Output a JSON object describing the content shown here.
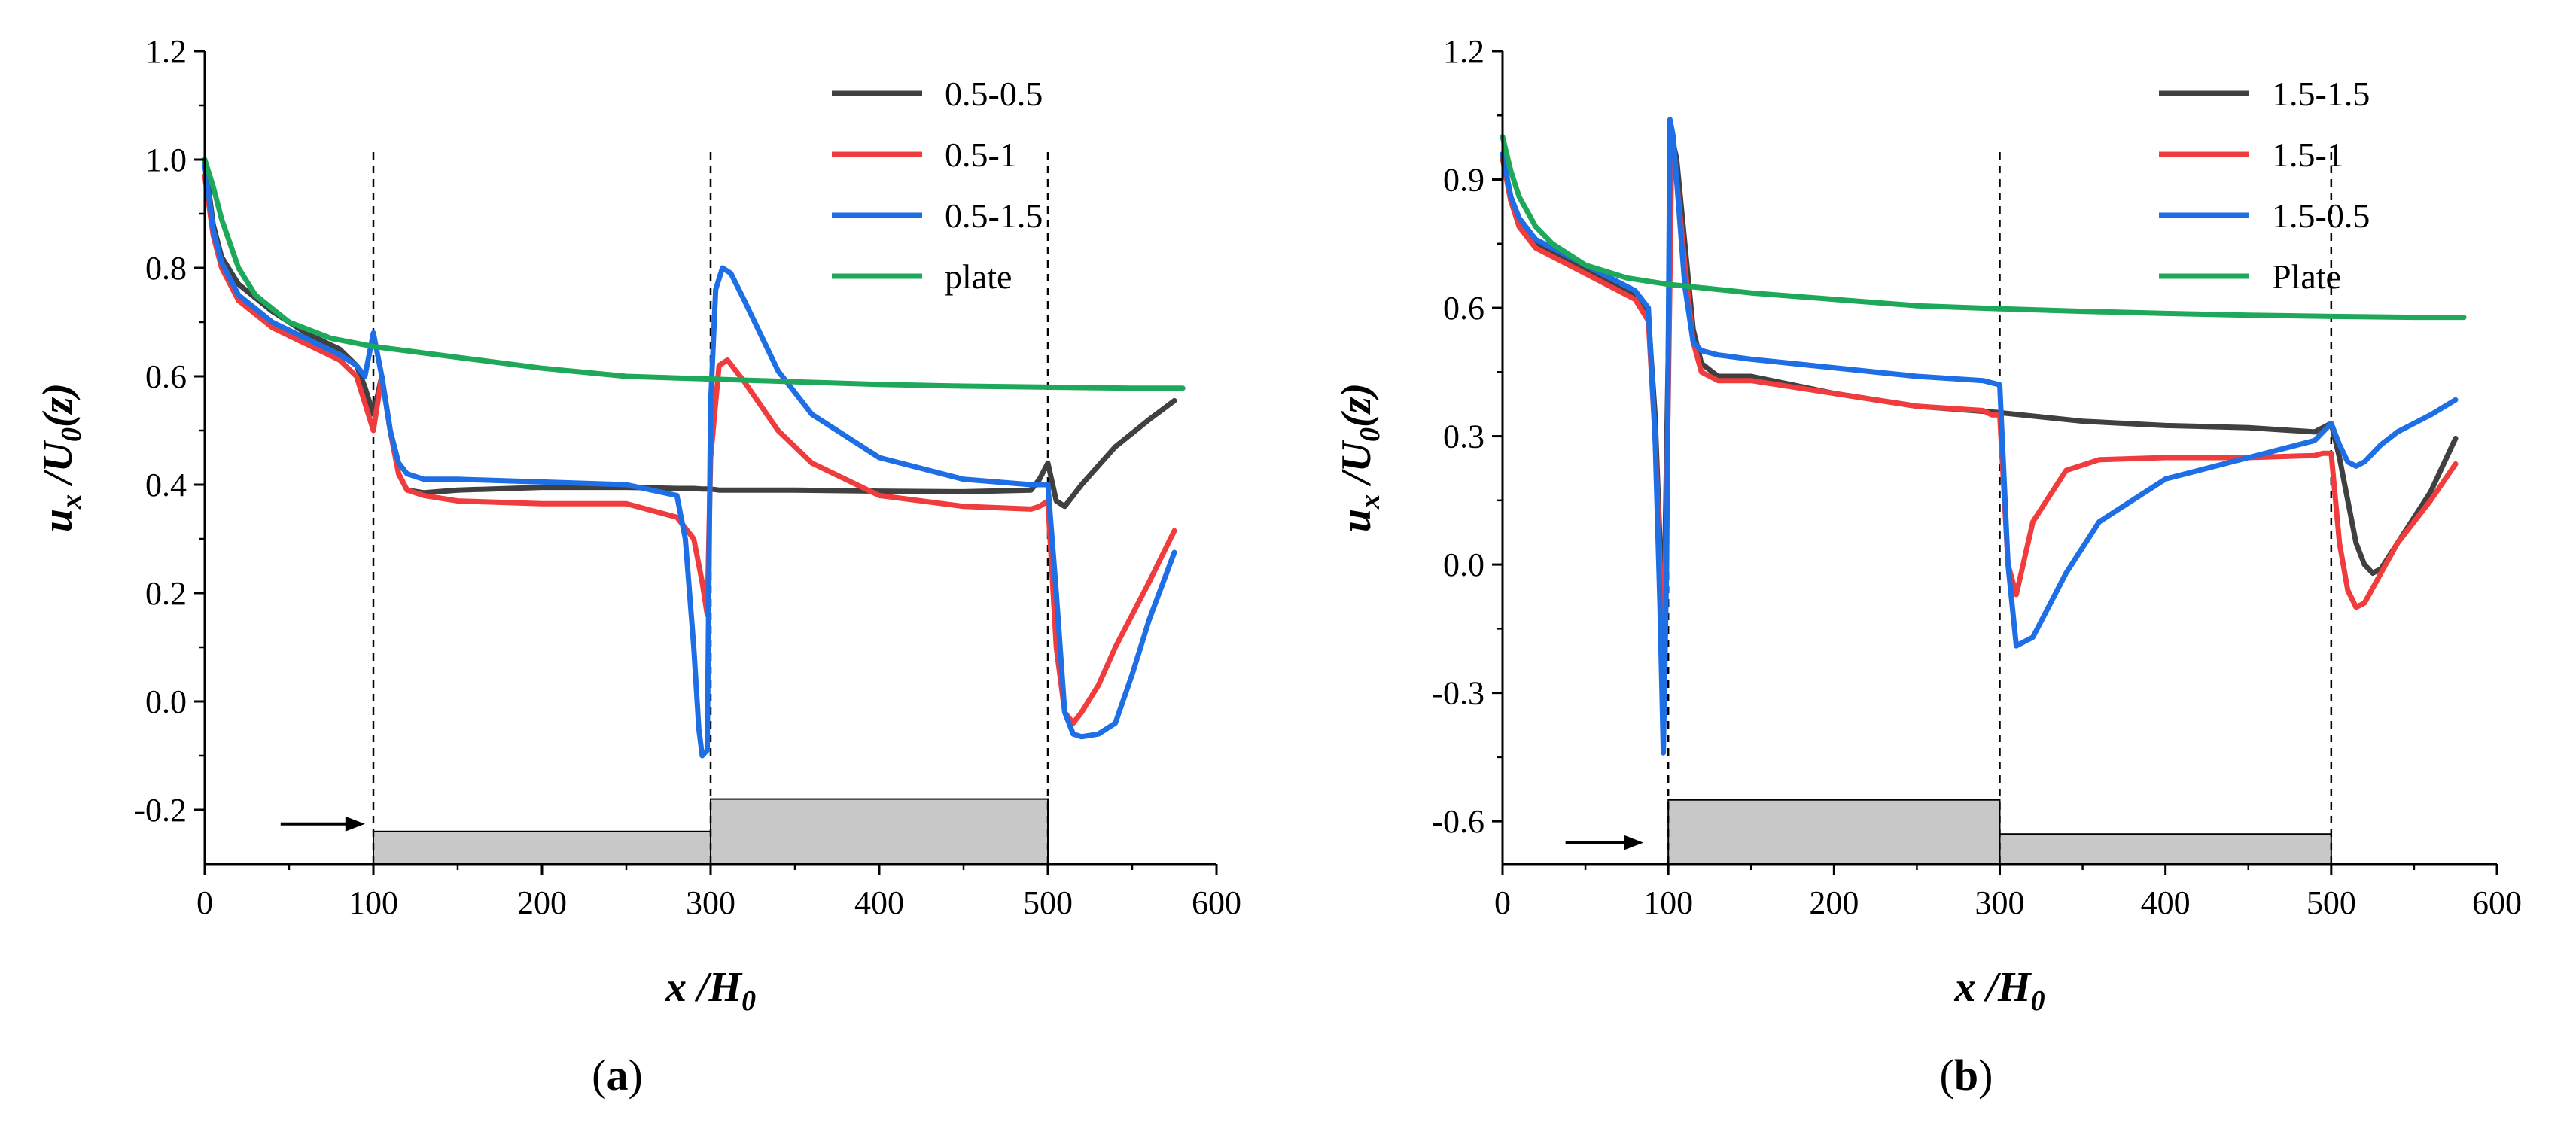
{
  "colors": {
    "dark_gray": "#404040",
    "red": "#f03c3c",
    "blue": "#1e6ee6",
    "green": "#1ea85a",
    "block_fill": "#c8c8c8"
  },
  "chart_data": [
    {
      "type": "line",
      "panel_label": "(a)",
      "xlabel": "x /H0",
      "ylabel": "ux /U0(z)",
      "xlim": [
        0,
        600
      ],
      "ylim": [
        -0.3,
        1.2
      ],
      "xticks": [
        "0",
        "100",
        "200",
        "300",
        "400",
        "500",
        "600"
      ],
      "yticks": [
        "-0.2",
        "0.0",
        "0.2",
        "0.4",
        "0.6",
        "0.8",
        "1.0",
        "1.2"
      ],
      "legend_position": "top-right",
      "grid": false,
      "dashed_lines_x": [
        100,
        300,
        500
      ],
      "blocks": [
        {
          "x0": 100,
          "x1": 300,
          "top": -0.24
        },
        {
          "x0": 300,
          "x1": 500,
          "top": -0.18
        }
      ],
      "flow_arrow": {
        "x0": 45,
        "x1": 95,
        "y": -0.24
      },
      "series": [
        {
          "name": "0.5-0.5",
          "color": "dark_gray",
          "x": [
            0,
            5,
            10,
            20,
            40,
            60,
            80,
            90,
            95,
            100,
            105,
            110,
            115,
            120,
            130,
            150,
            200,
            250,
            280,
            290,
            295,
            298,
            300,
            305,
            320,
            350,
            400,
            450,
            490,
            495,
            500,
            505,
            510,
            520,
            540,
            560,
            575
          ],
          "y": [
            1.0,
            0.88,
            0.82,
            0.77,
            0.72,
            0.68,
            0.65,
            0.62,
            0.58,
            0.53,
            0.6,
            0.5,
            0.42,
            0.39,
            0.385,
            0.39,
            0.395,
            0.395,
            0.393,
            0.393,
            0.392,
            0.392,
            0.392,
            0.39,
            0.39,
            0.39,
            0.388,
            0.387,
            0.39,
            0.41,
            0.44,
            0.37,
            0.36,
            0.4,
            0.47,
            0.52,
            0.555
          ]
        },
        {
          "name": "0.5-1",
          "color": "red",
          "x": [
            0,
            5,
            10,
            20,
            40,
            60,
            80,
            90,
            95,
            100,
            105,
            110,
            115,
            120,
            130,
            150,
            200,
            250,
            280,
            290,
            295,
            298,
            300,
            305,
            310,
            320,
            340,
            360,
            400,
            450,
            490,
            495,
            500,
            505,
            510,
            515,
            520,
            530,
            540,
            560,
            575
          ],
          "y": [
            0.97,
            0.86,
            0.8,
            0.74,
            0.69,
            0.66,
            0.63,
            0.6,
            0.55,
            0.5,
            0.6,
            0.5,
            0.42,
            0.39,
            0.38,
            0.37,
            0.365,
            0.365,
            0.34,
            0.3,
            0.22,
            0.16,
            0.45,
            0.62,
            0.63,
            0.59,
            0.5,
            0.44,
            0.38,
            0.36,
            0.355,
            0.36,
            0.37,
            0.1,
            -0.02,
            -0.04,
            -0.02,
            0.03,
            0.1,
            0.22,
            0.315
          ]
        },
        {
          "name": "0.5-1.5",
          "color": "blue",
          "x": [
            0,
            5,
            10,
            20,
            40,
            60,
            80,
            90,
            95,
            100,
            105,
            110,
            115,
            120,
            130,
            150,
            200,
            250,
            280,
            285,
            290,
            293,
            295,
            298,
            300,
            303,
            307,
            312,
            320,
            340,
            360,
            400,
            450,
            490,
            495,
            500,
            505,
            510,
            515,
            520,
            530,
            540,
            550,
            560,
            575
          ],
          "y": [
            0.99,
            0.87,
            0.81,
            0.75,
            0.7,
            0.67,
            0.64,
            0.62,
            0.6,
            0.68,
            0.6,
            0.5,
            0.44,
            0.42,
            0.41,
            0.41,
            0.405,
            0.4,
            0.38,
            0.3,
            0.1,
            -0.05,
            -0.1,
            -0.09,
            0.55,
            0.76,
            0.8,
            0.79,
            0.74,
            0.61,
            0.53,
            0.45,
            0.41,
            0.4,
            0.4,
            0.4,
            0.2,
            -0.02,
            -0.06,
            -0.065,
            -0.06,
            -0.04,
            0.05,
            0.15,
            0.275
          ]
        },
        {
          "name": "plate",
          "color": "green",
          "x": [
            0,
            5,
            10,
            20,
            30,
            50,
            75,
            100,
            150,
            200,
            250,
            300,
            350,
            400,
            450,
            500,
            550,
            580
          ],
          "y": [
            1.0,
            0.95,
            0.89,
            0.8,
            0.75,
            0.7,
            0.67,
            0.655,
            0.635,
            0.615,
            0.6,
            0.595,
            0.59,
            0.585,
            0.582,
            0.58,
            0.578,
            0.578
          ]
        }
      ]
    },
    {
      "type": "line",
      "panel_label": "(b)",
      "xlabel": "x /H0",
      "ylabel": "ux /U0(z)",
      "xlim": [
        0,
        600
      ],
      "ylim": [
        -0.7,
        1.2
      ],
      "xticks": [
        "0",
        "100",
        "200",
        "300",
        "400",
        "500",
        "600"
      ],
      "yticks": [
        "-0.6",
        "-0.3",
        "0.0",
        "0.3",
        "0.6",
        "0.9",
        "1.2"
      ],
      "legend_position": "top-right",
      "grid": false,
      "dashed_lines_x": [
        100,
        300,
        500
      ],
      "blocks": [
        {
          "x0": 100,
          "x1": 300,
          "top": -0.55
        },
        {
          "x0": 300,
          "x1": 500,
          "top": -0.63
        }
      ],
      "flow_arrow": {
        "x0": 38,
        "x1": 85,
        "y": -0.65
      },
      "series": [
        {
          "name": "1.5-1.5",
          "color": "dark_gray",
          "x": [
            0,
            5,
            10,
            20,
            40,
            60,
            80,
            88,
            92,
            95,
            97,
            100,
            102,
            105,
            110,
            115,
            120,
            130,
            150,
            200,
            250,
            300,
            350,
            400,
            450,
            490,
            495,
            500,
            505,
            510,
            515,
            520,
            525,
            530,
            540,
            560,
            575
          ],
          "y": [
            0.95,
            0.85,
            0.8,
            0.75,
            0.71,
            0.67,
            0.63,
            0.58,
            0.35,
            0.05,
            -0.2,
            0.5,
            1.0,
            0.95,
            0.75,
            0.55,
            0.47,
            0.44,
            0.44,
            0.4,
            0.37,
            0.355,
            0.335,
            0.325,
            0.32,
            0.31,
            0.32,
            0.33,
            0.25,
            0.15,
            0.05,
            0.0,
            -0.02,
            -0.01,
            0.05,
            0.17,
            0.295
          ]
        },
        {
          "name": "1.5-1",
          "color": "red",
          "x": [
            0,
            5,
            10,
            20,
            40,
            60,
            80,
            88,
            92,
            95,
            97,
            100,
            102,
            105,
            110,
            115,
            120,
            130,
            150,
            200,
            250,
            290,
            295,
            300,
            305,
            310,
            320,
            340,
            360,
            400,
            450,
            490,
            495,
            500,
            505,
            510,
            515,
            520,
            530,
            540,
            560,
            575
          ],
          "y": [
            0.95,
            0.85,
            0.79,
            0.74,
            0.7,
            0.66,
            0.62,
            0.57,
            0.3,
            0.0,
            -0.3,
            0.4,
            0.95,
            0.9,
            0.7,
            0.52,
            0.45,
            0.43,
            0.43,
            0.4,
            0.37,
            0.36,
            0.35,
            0.35,
            0.0,
            -0.07,
            0.1,
            0.22,
            0.245,
            0.25,
            0.25,
            0.255,
            0.26,
            0.26,
            0.05,
            -0.06,
            -0.1,
            -0.09,
            -0.02,
            0.05,
            0.15,
            0.235
          ]
        },
        {
          "name": "1.5-0.5",
          "color": "blue",
          "x": [
            0,
            5,
            10,
            20,
            40,
            60,
            80,
            88,
            92,
            95,
            97,
            99,
            101,
            103,
            106,
            110,
            115,
            120,
            130,
            150,
            200,
            250,
            290,
            295,
            300,
            305,
            310,
            320,
            340,
            360,
            400,
            450,
            490,
            495,
            500,
            505,
            510,
            515,
            520,
            530,
            540,
            560,
            575
          ],
          "y": [
            0.96,
            0.86,
            0.81,
            0.76,
            0.72,
            0.68,
            0.64,
            0.6,
            0.3,
            -0.1,
            -0.44,
            0.0,
            1.04,
            1.0,
            0.85,
            0.65,
            0.52,
            0.5,
            0.49,
            0.48,
            0.46,
            0.44,
            0.43,
            0.425,
            0.42,
            0.0,
            -0.19,
            -0.17,
            -0.02,
            0.1,
            0.2,
            0.25,
            0.29,
            0.31,
            0.33,
            0.28,
            0.24,
            0.23,
            0.24,
            0.28,
            0.31,
            0.35,
            0.385
          ]
        },
        {
          "name": "Plate",
          "color": "green",
          "x": [
            0,
            5,
            10,
            20,
            30,
            50,
            75,
            100,
            150,
            200,
            250,
            300,
            350,
            400,
            450,
            500,
            550,
            580
          ],
          "y": [
            1.0,
            0.92,
            0.86,
            0.79,
            0.75,
            0.7,
            0.67,
            0.655,
            0.635,
            0.62,
            0.605,
            0.598,
            0.592,
            0.587,
            0.583,
            0.58,
            0.578,
            0.578
          ]
        }
      ]
    }
  ]
}
